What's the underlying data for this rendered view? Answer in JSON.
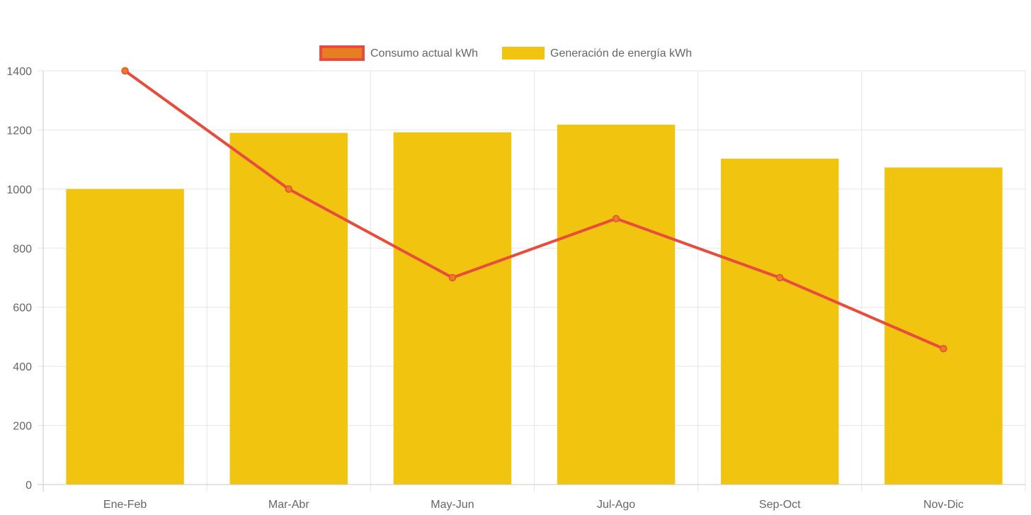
{
  "chart_data": {
    "type": "bar",
    "categories": [
      "Ene-Feb",
      "Mar-Abr",
      "May-Jun",
      "Jul-Ago",
      "Sep-Oct",
      "Nov-Dic"
    ],
    "ylim": [
      0,
      1400
    ],
    "yticks": [
      0,
      200,
      400,
      600,
      800,
      1000,
      1200,
      1400
    ],
    "ytick_labels": [
      "0",
      "200",
      "400",
      "600",
      "800",
      "1000",
      "1200",
      "1400"
    ],
    "grid": true,
    "legend_position": "top-center",
    "series": [
      {
        "name": "Consumo actual kWh",
        "type": "line",
        "color": "#e74c3c",
        "point_color": "#e67e22",
        "values": [
          1400,
          1000,
          700,
          900,
          700,
          460
        ]
      },
      {
        "name": "Generación de energía kWh",
        "type": "bar",
        "color": "#f1c40f",
        "values": [
          1000,
          1190,
          1192,
          1218,
          1103,
          1073
        ]
      }
    ]
  }
}
